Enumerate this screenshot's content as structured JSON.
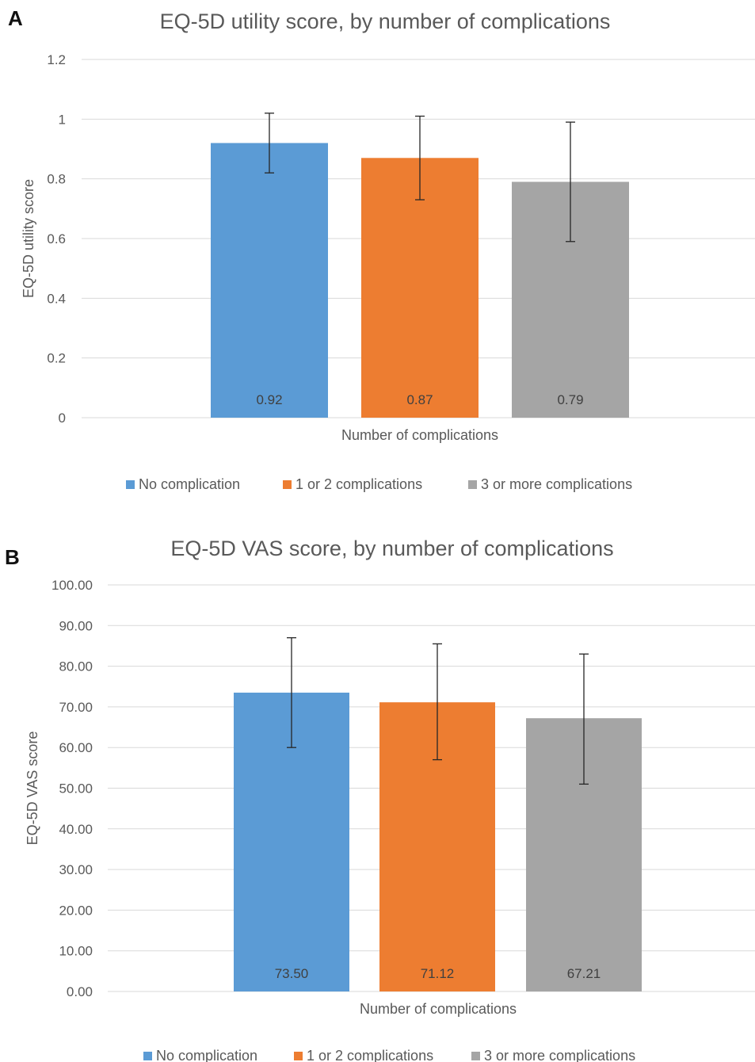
{
  "panels": [
    {
      "letter": "A"
    },
    {
      "letter": "B"
    }
  ],
  "chart_data": [
    {
      "type": "bar",
      "title": "EQ-5D utility score, by number of complications",
      "xlabel": "Number of complications",
      "ylabel": "EQ-5D utility score",
      "ylim": [
        0,
        1.2
      ],
      "yticks": [
        "0",
        "0.2",
        "0.4",
        "0.6",
        "0.8",
        "1",
        "1.2"
      ],
      "grid": true,
      "legend_position": "bottom",
      "series": [
        {
          "name": "No complication",
          "value": 0.92,
          "label": "0.92",
          "error": [
            0.82,
            1.02
          ],
          "color": "#5b9bd5"
        },
        {
          "name": "1 or 2 complications",
          "value": 0.87,
          "label": "0.87",
          "error": [
            0.73,
            1.01
          ],
          "color": "#ed7d31"
        },
        {
          "name": "3 or more complications",
          "value": 0.79,
          "label": "0.79",
          "error": [
            0.59,
            0.99
          ],
          "color": "#a5a5a5"
        }
      ]
    },
    {
      "type": "bar",
      "title": "EQ-5D VAS score, by number of complications",
      "xlabel": "Number of complications",
      "ylabel": "EQ-5D VAS score",
      "ylim": [
        0,
        100
      ],
      "yticks": [
        "0.00",
        "10.00",
        "20.00",
        "30.00",
        "40.00",
        "50.00",
        "60.00",
        "70.00",
        "80.00",
        "90.00",
        "100.00"
      ],
      "grid": true,
      "legend_position": "bottom",
      "series": [
        {
          "name": "No complication",
          "value": 73.5,
          "label": "73.50",
          "error": [
            60.0,
            87.0
          ],
          "color": "#5b9bd5"
        },
        {
          "name": "1 or 2 complications",
          "value": 71.12,
          "label": "71.12",
          "error": [
            57.0,
            85.5
          ],
          "color": "#ed7d31"
        },
        {
          "name": "3 or more complications",
          "value": 67.21,
          "label": "67.21",
          "error": [
            51.0,
            83.0
          ],
          "color": "#a5a5a5"
        }
      ]
    }
  ]
}
